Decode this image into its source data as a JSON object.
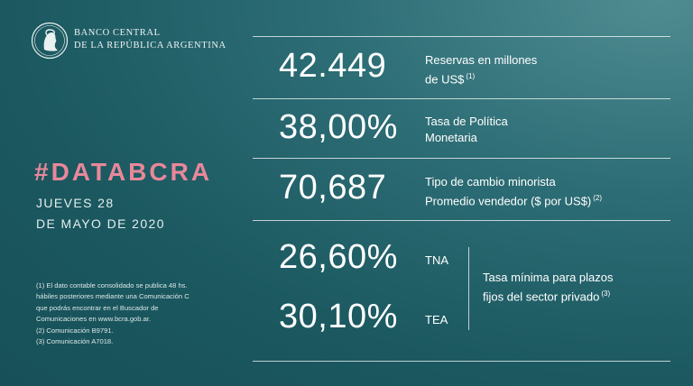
{
  "header": {
    "bank_line1": "BANCO CENTRAL",
    "bank_line2": "DE LA REPÚBLICA ARGENTINA"
  },
  "left": {
    "hashtag": "#DATABCRA",
    "date_line1": "JUEVES 28",
    "date_line2": "DE MAYO DE 2020"
  },
  "footnotes": [
    "(1) El dato contable consolidado se publica 48 hs.",
    "hábiles posteriores mediante una Comunicación C",
    "que podrás encontrar en el Buscador de",
    "Comunicaciones en www.bcra.gob.ar.",
    "(2) Comunicación B9791.",
    "(3) Comunicación A7018."
  ],
  "stats": {
    "reservas": {
      "value": "42.449",
      "label1": "Reservas en millones",
      "label2": "de US$",
      "note": "(1)"
    },
    "tasa_politica": {
      "value": "38,00%",
      "label1": "Tasa de Política",
      "label2": "Monetaria"
    },
    "tipo_cambio": {
      "value": "70,687",
      "label1": "Tipo de cambio minorista",
      "label2": "Promedio vendedor  ($ por US$)",
      "note": "(2)"
    },
    "tna": {
      "value": "26,60%",
      "tag": "TNA"
    },
    "tea": {
      "value": "30,10%",
      "tag": "TEA"
    },
    "tasa_minima": {
      "label1": "Tasa mínima para plazos",
      "label2": "fijos del sector privado",
      "note": "(3)"
    }
  },
  "colors": {
    "accent": "#e8889a",
    "background": "#1b5860"
  }
}
